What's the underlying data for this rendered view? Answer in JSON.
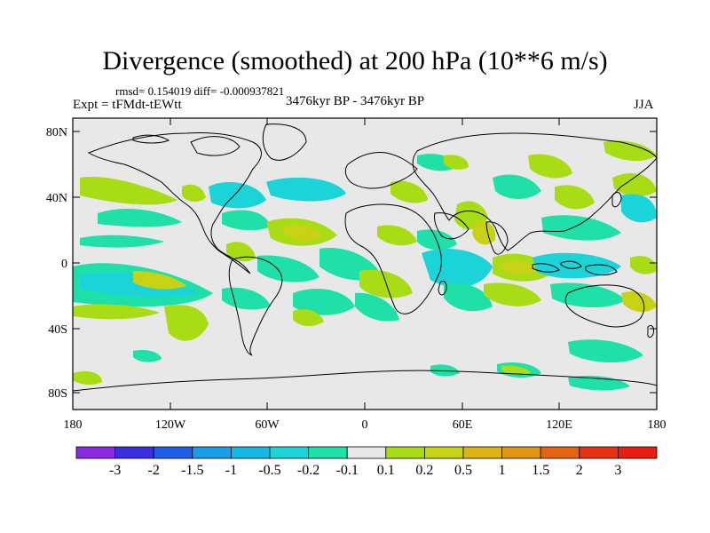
{
  "header": {
    "title": "Divergence (smoothed) at 200 hPa (10**6 m/s)",
    "stats": "rmsd= 0.154019 diff= -0.000937821",
    "experiment": "Expt = tFMdt-tEWtt",
    "period": "3476kyr BP - 3476kyr BP",
    "season": "JJA"
  },
  "map": {
    "lat_ticks": [
      "80N",
      "40N",
      "0",
      "40S",
      "80S"
    ],
    "lon_ticks": [
      "180",
      "120W",
      "60W",
      "0",
      "60E",
      "120E",
      "180"
    ],
    "background_color": "#e8e8e8"
  },
  "colorbar": {
    "labels": [
      "-3",
      "-2",
      "-1.5",
      "-1",
      "-0.5",
      "-0.2",
      "-0.1",
      "0.1",
      "0.2",
      "0.5",
      "1",
      "1.5",
      "2",
      "3"
    ],
    "colors": [
      "#8a2be2",
      "#3a2ee0",
      "#1e5fe8",
      "#1a9ee8",
      "#14b8e6",
      "#1ad4d8",
      "#1ee0a8",
      "#e8e8e8",
      "#a8dc14",
      "#c8d214",
      "#dcb414",
      "#e09614",
      "#e46414",
      "#e83214",
      "#e81e14"
    ]
  }
}
